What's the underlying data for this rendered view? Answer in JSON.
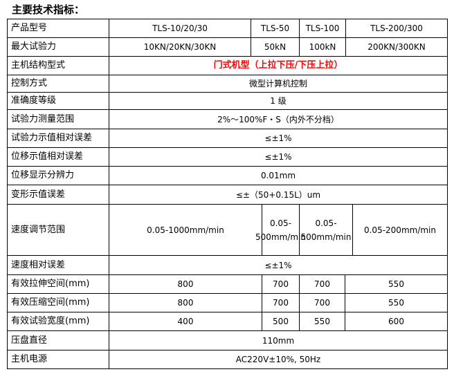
{
  "title": "主要技术指标：",
  "rows": [
    {
      "label": "产品型号",
      "cells": [
        "TLS-10/20/30",
        "TLS-50",
        "TLS-100",
        "TLS-200/300"
      ]
    },
    {
      "label": "最大试验力",
      "cells": [
        "10KN/20KN/30KN",
        "50kN",
        "100kN",
        "200KN/300KN"
      ]
    },
    {
      "label": "主机结构型式",
      "cells": [
        "门式机型（上拉下压/下压上拉）"
      ]
    },
    {
      "label": "控制方式",
      "cells": [
        "微型计算机控制"
      ]
    },
    {
      "label": "准确度等级",
      "cells": [
        "1 级"
      ]
    },
    {
      "label": "试验力测量范围",
      "cells": [
        "2%～100%F・S（内外不分档）"
      ]
    },
    {
      "label": "试验力示值相对误差",
      "cells": [
        "≤±1%"
      ]
    },
    {
      "label": "位移示值相对误差",
      "cells": [
        "≤±1%"
      ]
    },
    {
      "label": "位移显示分辨力",
      "cells": [
        "0.01mm"
      ]
    },
    {
      "label": "变形示值误差",
      "cells": [
        "≤±（50+0.15L）um"
      ]
    },
    {
      "label": "速度调节范围",
      "cells": [
        "0.05-1000mm/min",
        "0.05-500mm/min",
        "0.05-500mm/min",
        "0.05-200mm/min"
      ]
    },
    {
      "label": "速度相对误差",
      "cells": [
        "≤±1%"
      ]
    },
    {
      "label": "有效拉伸空间(mm)",
      "cells": [
        "800",
        "700",
        "700",
        "550"
      ]
    },
    {
      "label": "有效压缩空间(mm)",
      "cells": [
        "800",
        "700",
        "700",
        "550"
      ]
    },
    {
      "label": "有效试验宽度(mm)",
      "cells": [
        "400",
        "500",
        "550",
        "600"
      ]
    },
    {
      "label": "压盘直径",
      "cells": [
        "110mm"
      ]
    },
    {
      "label": "主机电源",
      "cells": [
        "AC220V±10%, 50Hz"
      ]
    }
  ],
  "highlight_color": "#ff0000"
}
